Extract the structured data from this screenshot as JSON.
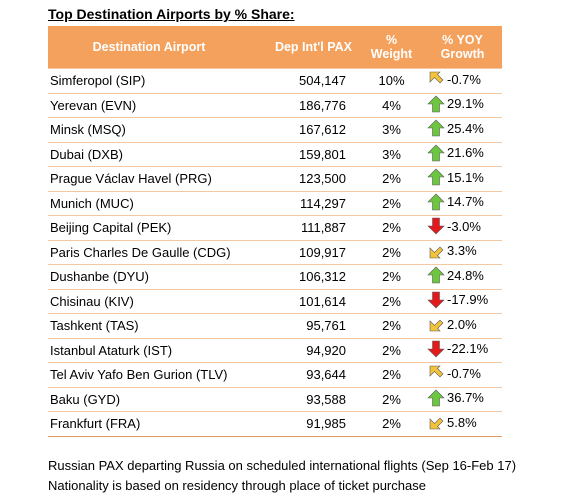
{
  "title": "Top Destination Airports by % Share:",
  "headers": {
    "airport": "Destination Airport",
    "pax": "Dep Int'l PAX",
    "weight_line1": "%",
    "weight_line2": "Weight",
    "growth_line1": "% YOY",
    "growth_line2": "Growth"
  },
  "colors": {
    "up": "#6CC640",
    "down": "#E31A1C",
    "flat": "#F2C33A"
  },
  "rows": [
    {
      "airport": "Simferopol (SIP)",
      "pax": "504,147",
      "weight": "10%",
      "trend": "flat-down",
      "growth": "-0.7%"
    },
    {
      "airport": "Yerevan (EVN)",
      "pax": "186,776",
      "weight": "4%",
      "trend": "up",
      "growth": "29.1%"
    },
    {
      "airport": "Minsk (MSQ)",
      "pax": "167,612",
      "weight": "3%",
      "trend": "up",
      "growth": "25.4%"
    },
    {
      "airport": "Dubai (DXB)",
      "pax": "159,801",
      "weight": "3%",
      "trend": "up",
      "growth": "21.6%"
    },
    {
      "airport": "Prague Václav Havel (PRG)",
      "pax": "123,500",
      "weight": "2%",
      "trend": "up",
      "growth": "15.1%"
    },
    {
      "airport": "Munich (MUC)",
      "pax": "114,297",
      "weight": "2%",
      "trend": "up",
      "growth": "14.7%"
    },
    {
      "airport": "Beijing Capital (PEK)",
      "pax": "111,887",
      "weight": "2%",
      "trend": "down",
      "growth": "-3.0%"
    },
    {
      "airport": "Paris Charles De Gaulle (CDG)",
      "pax": "109,917",
      "weight": "2%",
      "trend": "flat-up",
      "growth": "3.3%"
    },
    {
      "airport": "Dushanbe (DYU)",
      "pax": "106,312",
      "weight": "2%",
      "trend": "up",
      "growth": "24.8%"
    },
    {
      "airport": "Chisinau (KIV)",
      "pax": "101,614",
      "weight": "2%",
      "trend": "down",
      "growth": "-17.9%"
    },
    {
      "airport": "Tashkent (TAS)",
      "pax": "95,761",
      "weight": "2%",
      "trend": "flat-up",
      "growth": "2.0%"
    },
    {
      "airport": "Istanbul Ataturk (IST)",
      "pax": "94,920",
      "weight": "2%",
      "trend": "down",
      "growth": "-22.1%"
    },
    {
      "airport": "Tel Aviv Yafo Ben Gurion (TLV)",
      "pax": "93,644",
      "weight": "2%",
      "trend": "flat-down",
      "growth": "-0.7%"
    },
    {
      "airport": "Baku (GYD)",
      "pax": "93,588",
      "weight": "2%",
      "trend": "up",
      "growth": "36.7%"
    },
    {
      "airport": "Frankfurt (FRA)",
      "pax": "91,985",
      "weight": "2%",
      "trend": "flat-up",
      "growth": "5.8%"
    }
  ],
  "notes": [
    "Russian PAX departing Russia on scheduled international flights (Sep 16-Feb 17)",
    "Nationality is based on residency through place of ticket purchase"
  ]
}
